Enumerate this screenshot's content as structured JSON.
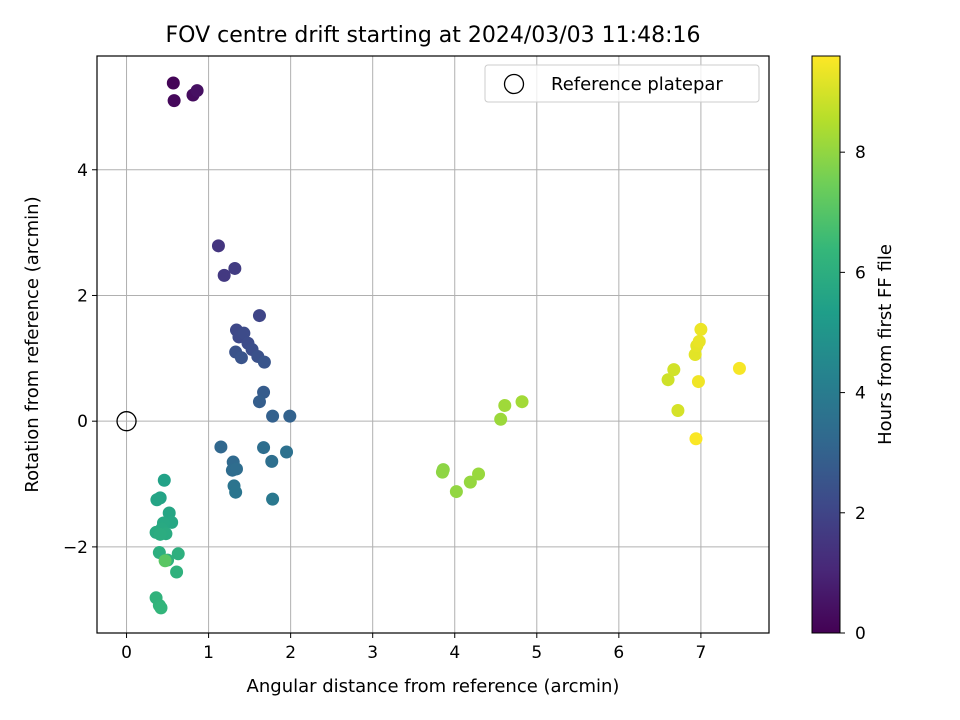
{
  "chart_data": {
    "type": "scatter",
    "title": "FOV centre drift starting at 2024/03/03 11:48:16",
    "xlabel": "Angular distance from reference (arcmin)",
    "ylabel": "Rotation from reference (arcmin)",
    "xlim": [
      -0.36,
      7.83
    ],
    "ylim": [
      -3.37,
      5.81
    ],
    "xticks": [
      "0",
      "1",
      "2",
      "3",
      "4",
      "5",
      "6",
      "7"
    ],
    "yticks": [
      "−2",
      "0",
      "2",
      "4"
    ],
    "grid": true,
    "legend": {
      "position": "top-right",
      "label": "Reference platepar",
      "marker": "open-circle"
    },
    "reference_point": {
      "x": 0,
      "y": 0
    },
    "colorbar": {
      "label": "Hours from first FF file",
      "colormap": "viridis",
      "range": [
        0,
        9.6
      ],
      "ticks": [
        "0",
        "2",
        "4",
        "6",
        "8"
      ]
    },
    "points": [
      {
        "x": 0.57,
        "y": 5.38,
        "hours": 0.1
      },
      {
        "x": 0.58,
        "y": 5.1,
        "hours": 0.2
      },
      {
        "x": 0.81,
        "y": 5.19,
        "hours": 0.3
      },
      {
        "x": 0.86,
        "y": 5.26,
        "hours": 0.4
      },
      {
        "x": 1.12,
        "y": 2.79,
        "hours": 1.5
      },
      {
        "x": 1.19,
        "y": 2.32,
        "hours": 1.6
      },
      {
        "x": 1.32,
        "y": 2.43,
        "hours": 1.7
      },
      {
        "x": 1.62,
        "y": 1.68,
        "hours": 2.0
      },
      {
        "x": 1.34,
        "y": 1.45,
        "hours": 2.1
      },
      {
        "x": 1.37,
        "y": 1.34,
        "hours": 2.15
      },
      {
        "x": 1.43,
        "y": 1.4,
        "hours": 2.2
      },
      {
        "x": 1.48,
        "y": 1.24,
        "hours": 2.25
      },
      {
        "x": 1.53,
        "y": 1.14,
        "hours": 2.3
      },
      {
        "x": 1.6,
        "y": 1.03,
        "hours": 2.4
      },
      {
        "x": 1.33,
        "y": 1.1,
        "hours": 2.45
      },
      {
        "x": 1.4,
        "y": 1.01,
        "hours": 2.5
      },
      {
        "x": 1.68,
        "y": 0.94,
        "hours": 2.55
      },
      {
        "x": 1.67,
        "y": 0.46,
        "hours": 2.8
      },
      {
        "x": 1.62,
        "y": 0.31,
        "hours": 2.85
      },
      {
        "x": 1.78,
        "y": 0.08,
        "hours": 2.95
      },
      {
        "x": 1.99,
        "y": 0.08,
        "hours": 3.0
      },
      {
        "x": 1.15,
        "y": -0.41,
        "hours": 3.2
      },
      {
        "x": 1.3,
        "y": -0.65,
        "hours": 3.3
      },
      {
        "x": 1.29,
        "y": -0.78,
        "hours": 3.35
      },
      {
        "x": 1.34,
        "y": -0.76,
        "hours": 3.4
      },
      {
        "x": 1.67,
        "y": -0.42,
        "hours": 3.45
      },
      {
        "x": 1.77,
        "y": -0.64,
        "hours": 3.5
      },
      {
        "x": 1.95,
        "y": -0.49,
        "hours": 3.55
      },
      {
        "x": 1.31,
        "y": -1.03,
        "hours": 3.7
      },
      {
        "x": 1.33,
        "y": -1.13,
        "hours": 3.75
      },
      {
        "x": 1.78,
        "y": -1.24,
        "hours": 3.85
      },
      {
        "x": 0.46,
        "y": -0.94,
        "hours": 5.5
      },
      {
        "x": 0.41,
        "y": -1.22,
        "hours": 5.55
      },
      {
        "x": 0.37,
        "y": -1.25,
        "hours": 5.6
      },
      {
        "x": 0.52,
        "y": -1.46,
        "hours": 5.65
      },
      {
        "x": 0.55,
        "y": -1.61,
        "hours": 5.7
      },
      {
        "x": 0.45,
        "y": -1.62,
        "hours": 5.75
      },
      {
        "x": 0.43,
        "y": -1.71,
        "hours": 5.8
      },
      {
        "x": 0.36,
        "y": -1.77,
        "hours": 5.85
      },
      {
        "x": 0.48,
        "y": -1.79,
        "hours": 5.9
      },
      {
        "x": 0.41,
        "y": -1.8,
        "hours": 5.95
      },
      {
        "x": 0.4,
        "y": -2.09,
        "hours": 6.0
      },
      {
        "x": 0.63,
        "y": -2.11,
        "hours": 6.05
      },
      {
        "x": 0.5,
        "y": -2.21,
        "hours": 6.1
      },
      {
        "x": 0.61,
        "y": -2.4,
        "hours": 6.15
      },
      {
        "x": 0.36,
        "y": -2.81,
        "hours": 6.2
      },
      {
        "x": 0.4,
        "y": -2.93,
        "hours": 6.25
      },
      {
        "x": 0.42,
        "y": -2.97,
        "hours": 6.3
      },
      {
        "x": 0.47,
        "y": -2.22,
        "hours": 7.1
      },
      {
        "x": 3.86,
        "y": -0.77,
        "hours": 7.9
      },
      {
        "x": 3.85,
        "y": -0.81,
        "hours": 7.95
      },
      {
        "x": 4.02,
        "y": -1.12,
        "hours": 8.0
      },
      {
        "x": 4.19,
        "y": -0.97,
        "hours": 8.05
      },
      {
        "x": 4.29,
        "y": -0.84,
        "hours": 8.1
      },
      {
        "x": 4.56,
        "y": 0.03,
        "hours": 8.15
      },
      {
        "x": 4.61,
        "y": 0.25,
        "hours": 8.2
      },
      {
        "x": 4.82,
        "y": 0.31,
        "hours": 8.25
      },
      {
        "x": 6.6,
        "y": 0.66,
        "hours": 8.9
      },
      {
        "x": 6.67,
        "y": 0.82,
        "hours": 8.95
      },
      {
        "x": 6.72,
        "y": 0.17,
        "hours": 9.0
      },
      {
        "x": 6.93,
        "y": 1.06,
        "hours": 9.2
      },
      {
        "x": 6.95,
        "y": 1.2,
        "hours": 9.25
      },
      {
        "x": 6.98,
        "y": 1.27,
        "hours": 9.3
      },
      {
        "x": 7.0,
        "y": 1.46,
        "hours": 9.35
      },
      {
        "x": 6.97,
        "y": 0.63,
        "hours": 9.4
      },
      {
        "x": 7.47,
        "y": 0.84,
        "hours": 9.5
      },
      {
        "x": 6.94,
        "y": -0.28,
        "hours": 9.55
      }
    ]
  }
}
